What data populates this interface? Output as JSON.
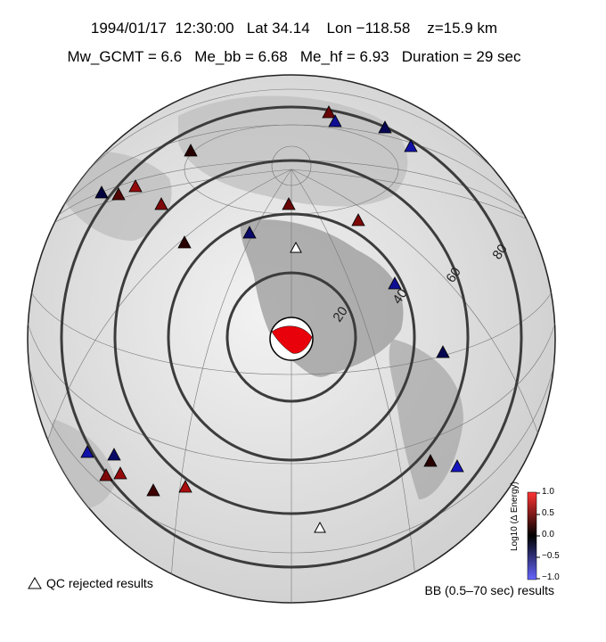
{
  "header": {
    "line1": "1994/01/17  12:30:00   Lat 34.14    Lon −118.58    z=15.9 km",
    "line2": "Mw_GCMT = 6.6   Me_bb = 6.68   Me_hf = 6.93   Duration = 29 sec"
  },
  "map": {
    "ring_labels": [
      "20",
      "40",
      "60",
      "80"
    ],
    "focal_mechanism_color": "#e8000b",
    "stations": [
      {
        "value": 0.3
      },
      {
        "value": -0.5
      },
      {
        "value": -0.2
      },
      {
        "value": -0.6
      },
      {
        "value": 0.0
      },
      {
        "value": -0.1
      },
      {
        "value": 0.2
      },
      {
        "value": 0.5
      },
      {
        "value": 0.4
      },
      {
        "value": 0.0
      },
      {
        "value": 0.3
      },
      {
        "value": -0.3
      },
      {
        "value": 0.4
      },
      {
        "value": -0.5
      },
      {
        "value": -0.2
      },
      {
        "value": -0.6
      },
      {
        "value": -0.3
      },
      {
        "value": 0.4
      },
      {
        "value": 0.5
      },
      {
        "value": 0.1
      },
      {
        "value": 0.6
      },
      {
        "value": 0.0
      },
      {
        "value": -0.7
      }
    ],
    "rejected_station_count": 2
  },
  "colorbar": {
    "title": "Log10 (Δ Energy)",
    "ticks": [
      "1.0",
      "0.5",
      "0.0",
      "−0.5",
      "−1.0"
    ],
    "low_color": "#5555ff",
    "mid_color": "#000000",
    "high_color": "#ff3333"
  },
  "legend": {
    "qc_rejected": "QC rejected results",
    "bb_results": "BB (0.5–70 sec) results"
  }
}
